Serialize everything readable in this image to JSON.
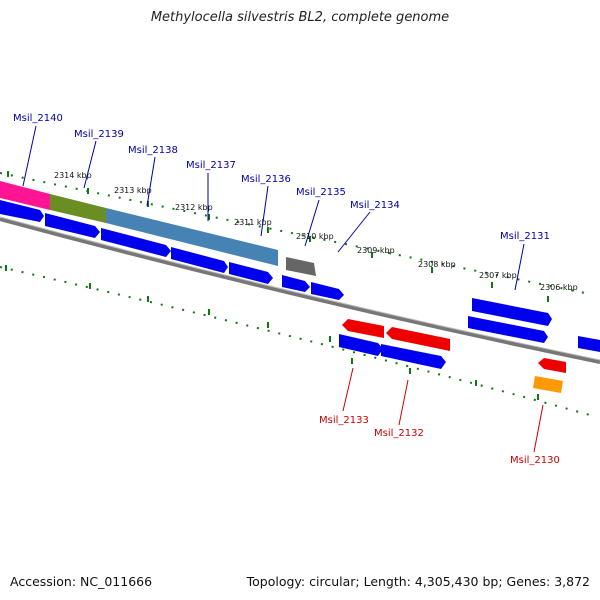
{
  "title": "Methylocella silvestris BL2, complete genome",
  "footer": {
    "accession": "Accession: NC_011666",
    "summary": "Topology: circular; Length: 4,305,430 bp; Genes: 3,872"
  },
  "colors": {
    "forward_gene": "#0000ee",
    "reverse_gene": "#ee0000",
    "label_forward": "#0000aa",
    "label_reverse": "#cc0000",
    "backbone": "#777777",
    "tick": "#117711",
    "gray_gene": "#666666",
    "orange_gene": "#ff9900",
    "pink_gene": "#ff1493",
    "olive_gene": "#6b8e23",
    "steel_gene": "#4682b4"
  },
  "ticks": [
    "2314 kbp",
    "2313 kbp",
    "2312 kbp",
    "2311 kbp",
    "2310 kbp",
    "2309 kbp",
    "2308 kbp",
    "2307 kbp",
    "2306 kbp"
  ],
  "gene_labels_top": [
    "Msil_2140",
    "Msil_2139",
    "Msil_2138",
    "Msil_2137",
    "Msil_2136",
    "Msil_2135",
    "Msil_2134",
    "Msil_2131"
  ],
  "gene_labels_bottom": [
    "Msil_2133",
    "Msil_2132",
    "Msil_2130"
  ]
}
